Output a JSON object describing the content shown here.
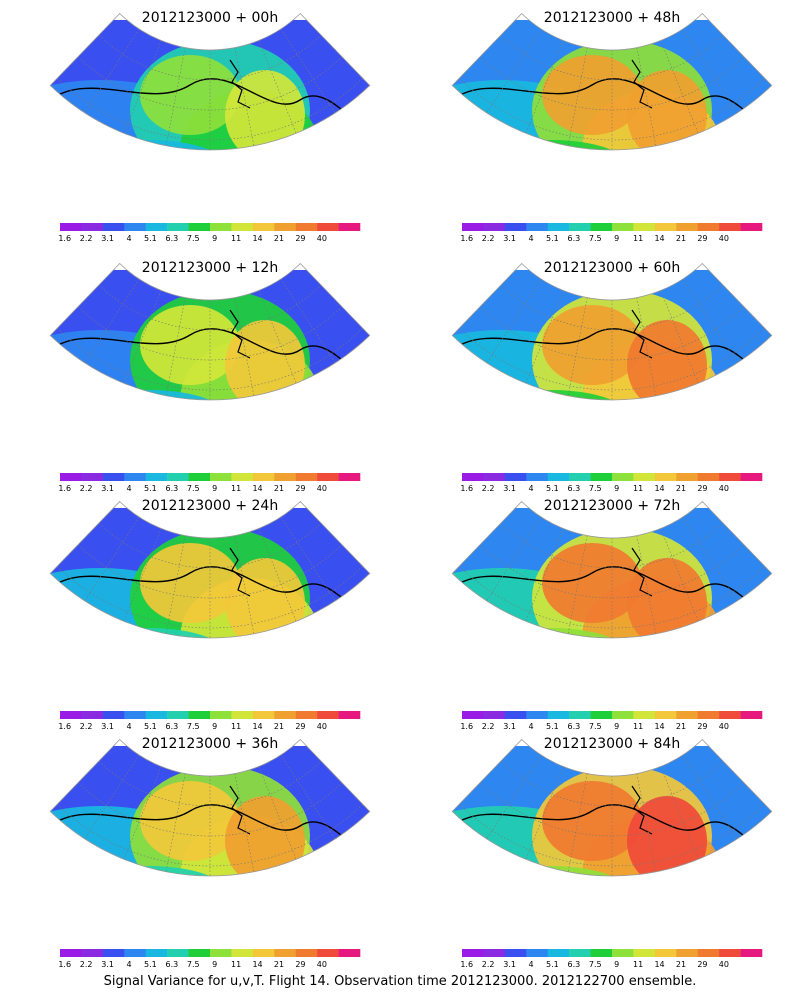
{
  "caption": "Signal Variance for u,v,T. Flight 14. Observation time 2012123000. 2012122700 ensemble.",
  "colorbar": {
    "labels": [
      "1.6",
      "2.2",
      "3.1",
      "4",
      "5.1",
      "6.3",
      "7.5",
      "9",
      "11",
      "14",
      "21",
      "29",
      "40"
    ],
    "colors": [
      "#9a1be6",
      "#8a2be2",
      "#3a4ff0",
      "#2e86f0",
      "#19b8e0",
      "#22d0b0",
      "#1fcf3a",
      "#8ee03a",
      "#d2e63a",
      "#f2c83a",
      "#f0a030",
      "#f07a30",
      "#f04a3a",
      "#e61a7e"
    ]
  },
  "chart_data": [
    {
      "type": "heatmap",
      "title": "2012123000 + 00h",
      "level": 0.18
    },
    {
      "type": "heatmap",
      "title": "2012123000 + 48h",
      "level": 0.55
    },
    {
      "type": "heatmap",
      "title": "2012123000 + 12h",
      "level": 0.28
    },
    {
      "type": "heatmap",
      "title": "2012123000 + 60h",
      "level": 0.62
    },
    {
      "type": "heatmap",
      "title": "2012123000 + 24h",
      "level": 0.38
    },
    {
      "type": "heatmap",
      "title": "2012123000 + 72h",
      "level": 0.7
    },
    {
      "type": "heatmap",
      "title": "2012123000 + 36h",
      "level": 0.45
    },
    {
      "type": "heatmap",
      "title": "2012123000 + 84h",
      "level": 0.78
    }
  ]
}
